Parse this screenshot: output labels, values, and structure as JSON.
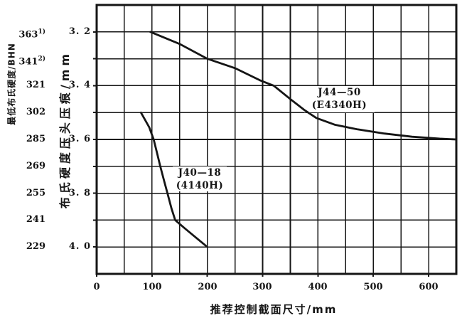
{
  "colors": {
    "ink": "#151515",
    "background": "#ffffff"
  },
  "y_axis_bhn": {
    "title": "最低布氏硬度/BHN",
    "labels": [
      {
        "text": "363",
        "sup": "1)"
      },
      {
        "text": "341",
        "sup": "2)"
      },
      {
        "text": "321"
      },
      {
        "text": "302"
      },
      {
        "text": "285"
      },
      {
        "text": "269"
      },
      {
        "text": "255"
      },
      {
        "text": "241"
      },
      {
        "text": "229"
      }
    ]
  },
  "y_axis_mm": {
    "title": "布氏硬度压头压痕/mm",
    "ticks": [
      "3. 2",
      "3. 4",
      "3. 6",
      "3. 8",
      "4. 0"
    ]
  },
  "x_axis": {
    "title": "推荐控制截面尺寸/mm",
    "ticks": [
      "0",
      "100",
      "200",
      "300",
      "400",
      "500",
      "600"
    ]
  },
  "series_labels": {
    "j44": {
      "line1": "J44—50",
      "line2": "(E4340H)"
    },
    "j40": {
      "line1": "J40—18",
      "line2": "(4140H)"
    }
  },
  "chart_data": {
    "type": "line",
    "title": "",
    "xlabel": "推荐控制截面尺寸/mm",
    "ylabel": "布氏硬度压头压痕/mm",
    "ylabel_secondary": "最低布氏硬度/BHN",
    "xlim": [
      0,
      650
    ],
    "ylim": [
      3.1,
      4.1
    ],
    "y_direction": "inverted-downward",
    "x_grid_step": 50,
    "y_grid_step": 0.1,
    "x_tick_values": [
      0,
      100,
      200,
      300,
      400,
      500,
      600
    ],
    "y_tick_values": [
      3.2,
      3.4,
      3.6,
      3.8,
      4.0
    ],
    "bhn_equivalents": [
      [
        3.2,
        363
      ],
      [
        3.3,
        341
      ],
      [
        3.4,
        321
      ],
      [
        3.5,
        302
      ],
      [
        3.6,
        285
      ],
      [
        3.7,
        269
      ],
      [
        3.8,
        255
      ],
      [
        3.9,
        241
      ],
      [
        4.0,
        229
      ]
    ],
    "grid": "on",
    "series": [
      {
        "name": "J44—50 (E4340H)",
        "points": [
          [
            97,
            3.2
          ],
          [
            150,
            3.245
          ],
          [
            200,
            3.3
          ],
          [
            250,
            3.335
          ],
          [
            295,
            3.38
          ],
          [
            320,
            3.4
          ],
          [
            350,
            3.45
          ],
          [
            375,
            3.49
          ],
          [
            397,
            3.52
          ],
          [
            430,
            3.545
          ],
          [
            470,
            3.562
          ],
          [
            520,
            3.578
          ],
          [
            570,
            3.59
          ],
          [
            620,
            3.597
          ],
          [
            650,
            3.6
          ]
        ]
      },
      {
        "name": "J40—18 (4140H)",
        "points": [
          [
            80,
            3.5
          ],
          [
            95,
            3.555
          ],
          [
            103,
            3.6
          ],
          [
            109,
            3.65
          ],
          [
            115,
            3.7
          ],
          [
            122,
            3.755
          ],
          [
            128,
            3.8
          ],
          [
            135,
            3.855
          ],
          [
            142,
            3.9
          ],
          [
            160,
            3.932
          ],
          [
            180,
            3.966
          ],
          [
            200,
            4.0
          ]
        ]
      }
    ]
  }
}
